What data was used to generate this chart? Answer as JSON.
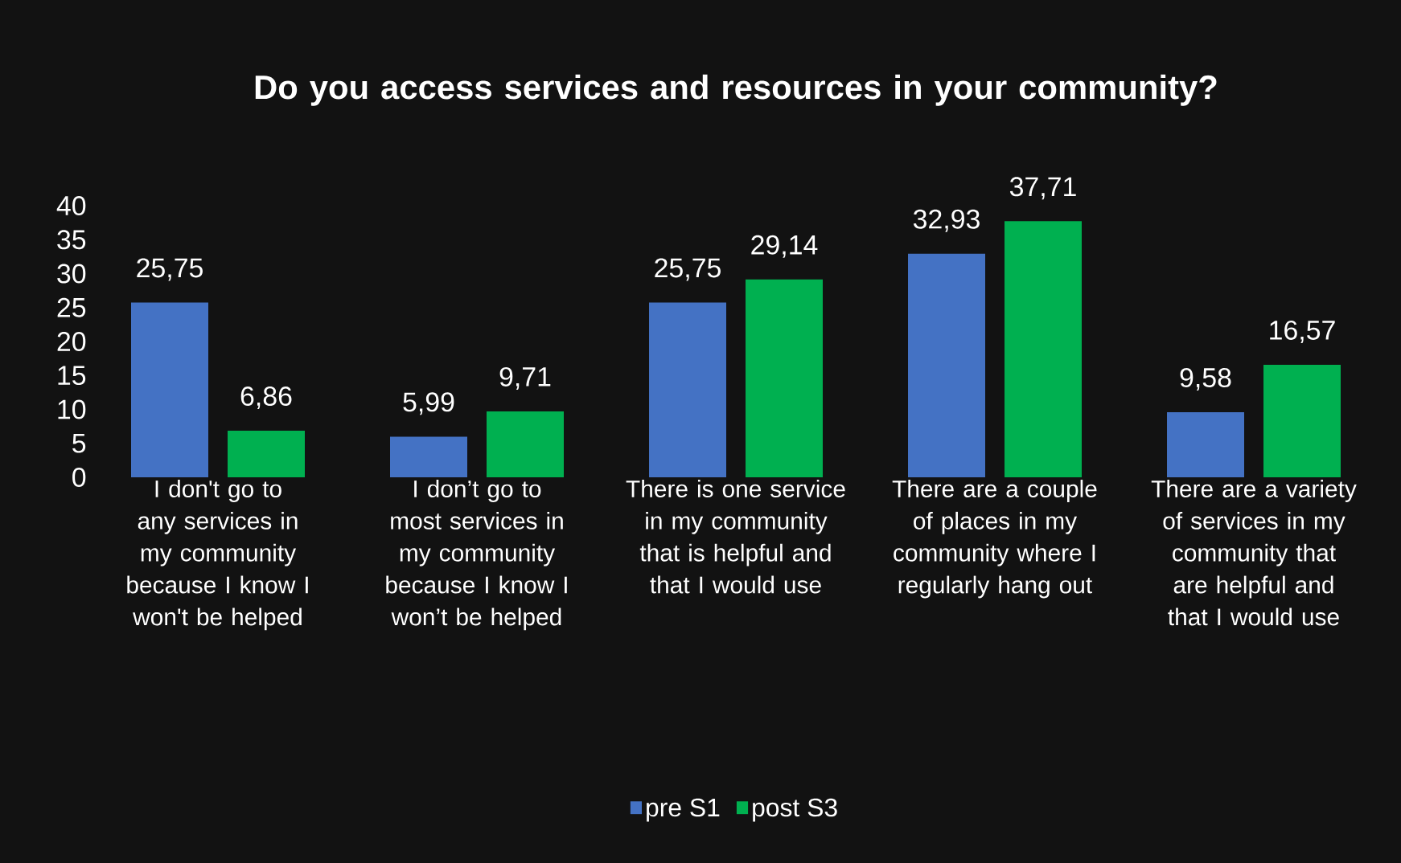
{
  "chart_data": {
    "type": "bar",
    "title": "Do you access services and resources in your community?",
    "categories": [
      "I don't go to any services in my community because I know I won't be helped",
      "I don’t go to most services in my community because I know I won’t be helped",
      "There is one service in my community that is helpful and that I would use",
      "There are a couple of places in my community where I regularly hang out",
      "There are a variety of services in my community that are helpful and that I would use"
    ],
    "series": [
      {
        "name": "pre S1",
        "color": "#4472c4",
        "values": [
          25.75,
          5.99,
          25.75,
          32.93,
          9.58
        ],
        "value_labels": [
          "25,75",
          "5,99",
          "25,75",
          "32,93",
          "9,58"
        ]
      },
      {
        "name": "post S3",
        "color": "#00b050",
        "values": [
          6.86,
          9.71,
          29.14,
          37.71,
          16.57
        ],
        "value_labels": [
          "6,86",
          "9,71",
          "29,14",
          "37,71",
          "16,57"
        ]
      }
    ],
    "ylim": [
      0,
      40
    ],
    "yticks": [
      0,
      5,
      10,
      15,
      20,
      25,
      30,
      35,
      40
    ],
    "grid": false,
    "legend": "bottom"
  }
}
